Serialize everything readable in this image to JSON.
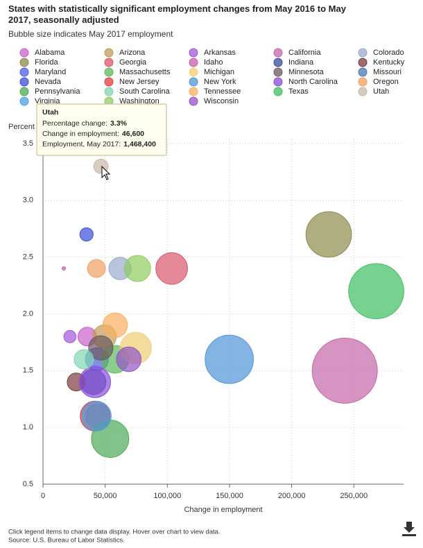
{
  "chart_data": {
    "type": "bubble",
    "title": "States with statistically significant employment changes from May 2016 to May 2017, seasonally adjusted",
    "subtitle": "Bubble size indicates May 2017 employment",
    "y_label": "Percent",
    "x_label": "Change in employment",
    "xlim": [
      0,
      290000
    ],
    "xticks": [
      0,
      {
        "value": 50000,
        "label": "50,000"
      },
      {
        "value": 100000,
        "label": "100,000"
      },
      {
        "value": 150000,
        "label": "150,000"
      },
      {
        "value": 200000,
        "label": "200,000"
      },
      {
        "value": 250000,
        "label": "250,000"
      }
    ],
    "ylim": [
      0.5,
      3.5
    ],
    "yticks": [
      0.5,
      {
        "value": 1,
        "label": "1.0"
      },
      1.5,
      {
        "value": 2,
        "label": "2.0"
      },
      2.5,
      {
        "value": 3,
        "label": "3.0"
      },
      3.5
    ],
    "grid": true,
    "series": [
      {
        "name": "Alabama",
        "color": "#c95fc9",
        "x": [
          35600
        ],
        "values": [
          1.8
        ],
        "sizes": [
          2000000
        ]
      },
      {
        "name": "Arizona",
        "color": "#bf9c5c",
        "x": [
          49500
        ],
        "values": [
          1.8
        ],
        "sizes": [
          2800000
        ]
      },
      {
        "name": "Arkansas",
        "color": "#a259d9",
        "x": [
          21700
        ],
        "values": [
          1.8
        ],
        "sizes": [
          1250000
        ]
      },
      {
        "name": "California",
        "color": "#c566a8",
        "x": [
          242700
        ],
        "values": [
          1.5
        ],
        "sizes": [
          16900000
        ]
      },
      {
        "name": "Colorado",
        "color": "#9aabcc",
        "x": [
          62000
        ],
        "values": [
          2.4
        ],
        "sizes": [
          2600000
        ]
      },
      {
        "name": "Florida",
        "color": "#8e8a4a",
        "x": [
          229800
        ],
        "values": [
          2.7
        ],
        "sizes": [
          8600000
        ]
      },
      {
        "name": "Georgia",
        "color": "#d9576b",
        "x": [
          103500
        ],
        "values": [
          2.4
        ],
        "sizes": [
          4500000
        ]
      },
      {
        "name": "Idaho",
        "color": "#c660a8",
        "x": [
          16700
        ],
        "values": [
          2.4
        ],
        "sizes": [
          720000
        ]
      },
      {
        "name": "Indiana",
        "color": "#3d4a99",
        "x": [
          40500
        ],
        "values": [
          1.4
        ],
        "sizes": [
          3100000
        ]
      },
      {
        "name": "Kentucky",
        "color": "#7a3c3c",
        "x": [
          26700
        ],
        "values": [
          1.4
        ],
        "sizes": [
          1900000
        ]
      },
      {
        "name": "Maryland",
        "color": "#4b5fe0",
        "x": [
          43400
        ],
        "values": [
          1.6
        ],
        "sizes": [
          2700000
        ]
      },
      {
        "name": "Massachusetts",
        "color": "#5cb85c",
        "x": [
          57900
        ],
        "values": [
          1.6
        ],
        "sizes": [
          3600000
        ]
      },
      {
        "name": "Michigan",
        "color": "#f0cf72",
        "x": [
          74600
        ],
        "values": [
          1.7
        ],
        "sizes": [
          4400000
        ]
      },
      {
        "name": "Minnesota",
        "color": "#6e5a5a",
        "x": [
          46500
        ],
        "values": [
          1.7
        ],
        "sizes": [
          2950000
        ]
      },
      {
        "name": "Missouri",
        "color": "#4a77b4",
        "x": [
          44000
        ],
        "values": [
          1.1
        ],
        "sizes": [
          2900000
        ]
      },
      {
        "name": "Nevada",
        "color": "#3b4ed8",
        "x": [
          35000
        ],
        "values": [
          2.7
        ],
        "sizes": [
          1350000
        ]
      },
      {
        "name": "New Jersey",
        "color": "#e03c3c",
        "x": [
          42000
        ],
        "values": [
          1.1
        ],
        "sizes": [
          4100000
        ]
      },
      {
        "name": "New York",
        "color": "#4f94d8",
        "x": [
          149800
        ],
        "values": [
          1.6
        ],
        "sizes": [
          9600000
        ]
      },
      {
        "name": "North Carolina",
        "color": "#8a4ed8",
        "x": [
          41800
        ],
        "values": [
          1.4
        ],
        "sizes": [
          4400000
        ]
      },
      {
        "name": "Oregon",
        "color": "#f0a060",
        "x": [
          43000
        ],
        "values": [
          2.4
        ],
        "sizes": [
          1900000
        ]
      },
      {
        "name": "Pennsylvania",
        "color": "#4daa57",
        "x": [
          54000
        ],
        "values": [
          0.9
        ],
        "sizes": [
          6000000
        ]
      },
      {
        "name": "South Carolina",
        "color": "#7fd6b0",
        "x": [
          32800
        ],
        "values": [
          1.6
        ],
        "sizes": [
          2100000
        ]
      },
      {
        "name": "Tennessee",
        "color": "#f8b060",
        "x": [
          58000
        ],
        "values": [
          1.9
        ],
        "sizes": [
          3000000
        ]
      },
      {
        "name": "Texas",
        "color": "#3fbf5f",
        "x": [
          268000
        ],
        "values": [
          2.2
        ],
        "sizes": [
          12300000
        ]
      },
      {
        "name": "Utah",
        "color": "#c9b8a8",
        "x": [
          46600
        ],
        "values": [
          3.3
        ],
        "sizes": [
          1468400
        ]
      },
      {
        "name": "Virginia",
        "color": "#4fa0e0",
        "x": [
          43000
        ],
        "values": [
          1.1
        ],
        "sizes": [
          4000000
        ]
      },
      {
        "name": "Washington",
        "color": "#90cc60",
        "x": [
          76000
        ],
        "values": [
          2.4
        ],
        "sizes": [
          3300000
        ]
      },
      {
        "name": "Wisconsin",
        "color": "#9255c8",
        "x": [
          69000
        ],
        "values": [
          1.6
        ],
        "sizes": [
          3000000
        ]
      }
    ]
  },
  "tooltip": {
    "title": "Utah",
    "rows": [
      {
        "label": "Percentage change:",
        "value": "3.3%"
      },
      {
        "label": "Change in employment:",
        "value": "46,600"
      },
      {
        "label": "Employment, May 2017:",
        "value": "1,468,400"
      }
    ]
  },
  "footer": [
    "Click legend items to change data display. Hover over chart to view data.",
    "Source: U.S. Bureau of Labor Statistics."
  ]
}
